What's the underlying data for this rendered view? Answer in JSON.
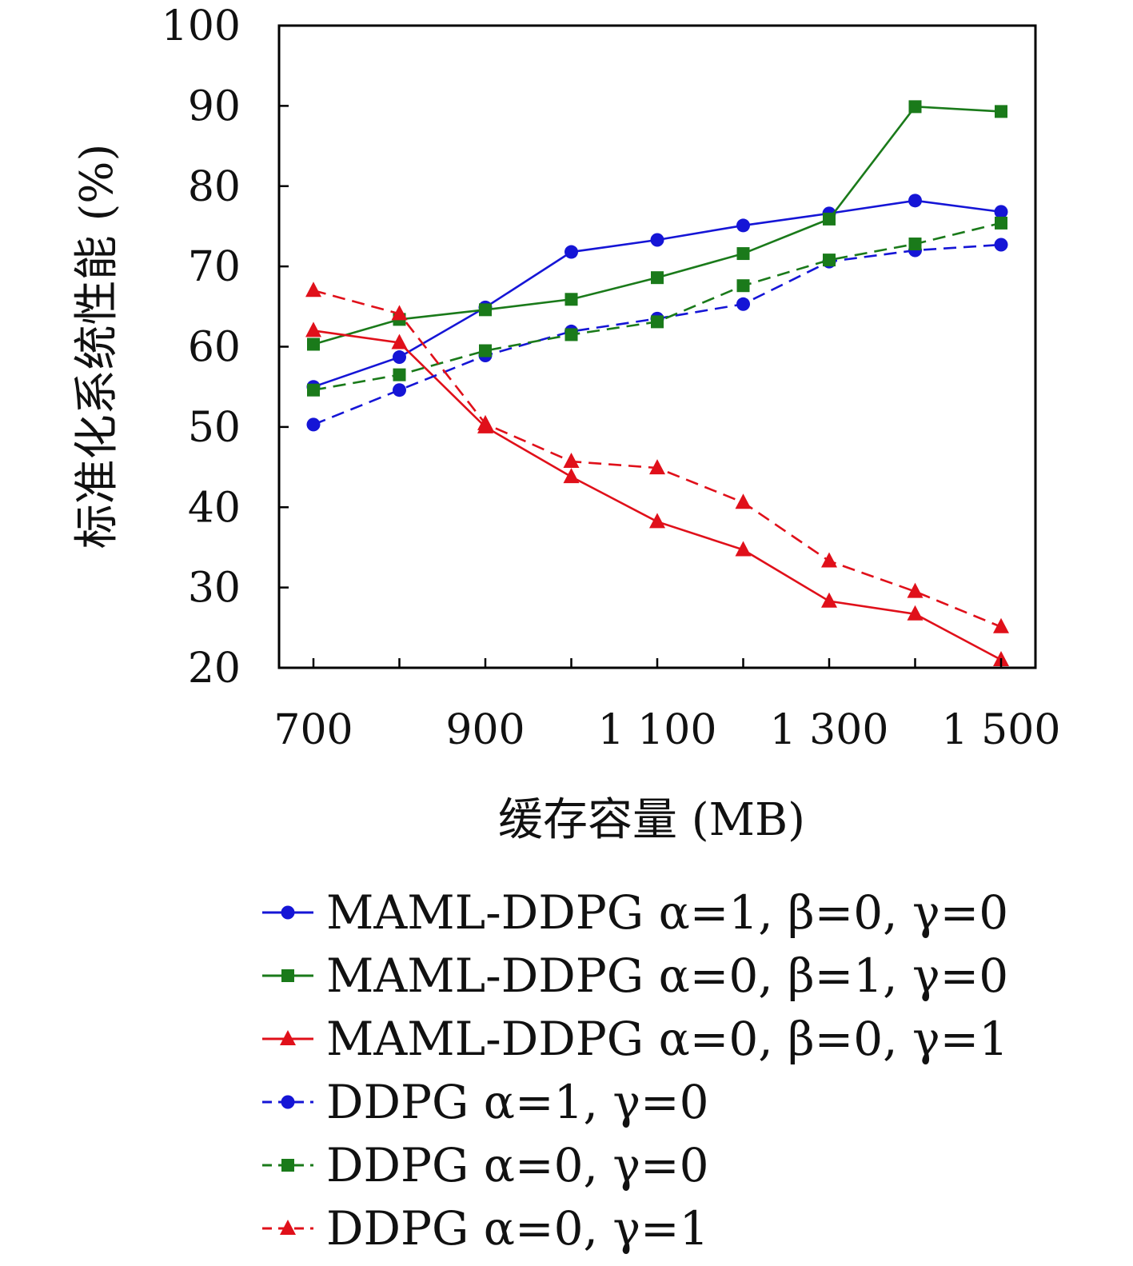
{
  "chart_data": {
    "type": "line",
    "xlabel": "缓存容量 (MB)",
    "ylabel": "标准化系统性能 (%)",
    "xlim": [
      660,
      1540
    ],
    "ylim": [
      20,
      100
    ],
    "x": [
      700,
      800,
      900,
      1000,
      1100,
      1200,
      1300,
      1400,
      1500
    ],
    "x_ticks": [
      700,
      900,
      1100,
      1300,
      1500
    ],
    "x_tick_labels": [
      "700",
      "900",
      "1 100",
      "1 300",
      "1 500"
    ],
    "y_ticks": [
      20,
      30,
      40,
      50,
      60,
      70,
      80,
      90,
      100
    ],
    "y_tick_labels": [
      "20",
      "30",
      "40",
      "50",
      "60",
      "70",
      "80",
      "90",
      "100"
    ],
    "grid": false,
    "legend_position": "below",
    "series": [
      {
        "name": "MAML-DDPG α=1, β=0, γ=0",
        "color": "#1515d6",
        "marker": "circle",
        "dash": false,
        "values": [
          55,
          58.7,
          64.9,
          71.8,
          73.3,
          75.1,
          76.6,
          78.2,
          76.8
        ]
      },
      {
        "name": "MAML-DDPG α=0, β=1, γ=0",
        "color": "#1a7a1a",
        "marker": "square",
        "dash": false,
        "values": [
          60.3,
          63.4,
          64.6,
          65.9,
          68.6,
          71.6,
          75.9,
          89.9,
          89.3
        ]
      },
      {
        "name": "MAML-DDPG α=0, β=0, γ=1",
        "color": "#e0101a",
        "marker": "triangle",
        "dash": false,
        "values": [
          62,
          60.5,
          50,
          43.8,
          38.2,
          34.7,
          28.3,
          26.7,
          21
        ]
      },
      {
        "name": "DDPG α=1, γ=0",
        "color": "#1515d6",
        "marker": "circle",
        "dash": true,
        "values": [
          50.3,
          54.6,
          58.9,
          61.9,
          63.5,
          65.3,
          70.6,
          72,
          72.7
        ]
      },
      {
        "name": "DDPG α=0, γ=0",
        "color": "#1a7a1a",
        "marker": "square",
        "dash": true,
        "values": [
          54.6,
          56.5,
          59.5,
          61.5,
          63.1,
          67.6,
          70.8,
          72.8,
          75.4
        ]
      },
      {
        "name": "DDPG α=0, γ=1",
        "color": "#e0101a",
        "marker": "triangle",
        "dash": true,
        "values": [
          67,
          64.1,
          50.4,
          45.7,
          44.9,
          40.6,
          33.3,
          29.5,
          25.1
        ]
      }
    ]
  }
}
